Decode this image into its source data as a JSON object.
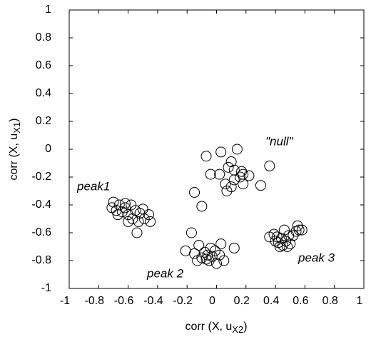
{
  "chart_data": {
    "type": "scatter",
    "xlabel": "corr (X, u",
    "xlabel_sub": "X2",
    "xlabel_end": ")",
    "ylabel": "corr (X, u",
    "ylabel_sub": "X1",
    "ylabel_end": ")",
    "xlim": [
      -1,
      1
    ],
    "ylim": [
      -1,
      1
    ],
    "xticks": [
      -1,
      -0.8,
      -0.6,
      -0.4,
      -0.2,
      0,
      0.2,
      0.4,
      0.6,
      0.8,
      1
    ],
    "yticks": [
      -1,
      -0.8,
      -0.6,
      -0.4,
      -0.2,
      0,
      0.2,
      0.4,
      0.6,
      0.8,
      1
    ],
    "annotations": [
      "peak1",
      "\"null\"",
      "peak 2",
      "peak 3"
    ],
    "color": "#000000",
    "x": [
      -0.7,
      -0.71,
      -0.68,
      -0.66,
      -0.64,
      -0.62,
      -0.6,
      -0.58,
      -0.57,
      -0.55,
      -0.53,
      -0.52,
      -0.5,
      -0.49,
      -0.46,
      -0.45,
      -0.54,
      -0.6,
      -0.67,
      -0.62,
      -0.07,
      0.03,
      0.14,
      0.1,
      0.08,
      0.12,
      0.17,
      0.18,
      0.16,
      0.22,
      0.12,
      0.06,
      0.1,
      0.18,
      0.3,
      0.36,
      -0.04,
      0.02,
      0.07,
      -0.15,
      -0.1,
      -0.17,
      -0.21,
      -0.15,
      -0.12,
      -0.1,
      -0.08,
      -0.06,
      -0.04,
      -0.03,
      -0.05,
      -0.07,
      0.0,
      0.02,
      0.03,
      0.05,
      0.12,
      -0.01,
      -0.13,
      0.36,
      0.39,
      0.4,
      0.42,
      0.44,
      0.45,
      0.47,
      0.48,
      0.5,
      0.46,
      0.52,
      0.55,
      0.56,
      0.54,
      0.58,
      0.49,
      0.43,
      0.41
    ],
    "y": [
      -0.38,
      -0.42,
      -0.44,
      -0.4,
      -0.45,
      -0.42,
      -0.47,
      -0.4,
      -0.5,
      -0.44,
      -0.52,
      -0.46,
      -0.43,
      -0.5,
      -0.47,
      -0.52,
      -0.6,
      -0.52,
      -0.47,
      -0.39,
      -0.05,
      -0.02,
      0.0,
      -0.09,
      -0.13,
      -0.15,
      -0.16,
      -0.18,
      -0.2,
      -0.19,
      -0.22,
      -0.25,
      -0.27,
      -0.25,
      -0.26,
      -0.12,
      -0.18,
      -0.18,
      -0.3,
      -0.31,
      -0.41,
      -0.6,
      -0.73,
      -0.75,
      -0.69,
      -0.78,
      -0.74,
      -0.76,
      -0.71,
      -0.77,
      -0.8,
      -0.79,
      -0.82,
      -0.76,
      -0.68,
      -0.8,
      -0.71,
      -0.73,
      -0.8,
      -0.63,
      -0.61,
      -0.66,
      -0.67,
      -0.64,
      -0.69,
      -0.66,
      -0.7,
      -0.68,
      -0.58,
      -0.62,
      -0.55,
      -0.58,
      -0.59,
      -0.58,
      -0.62,
      -0.7,
      -0.63
    ]
  }
}
